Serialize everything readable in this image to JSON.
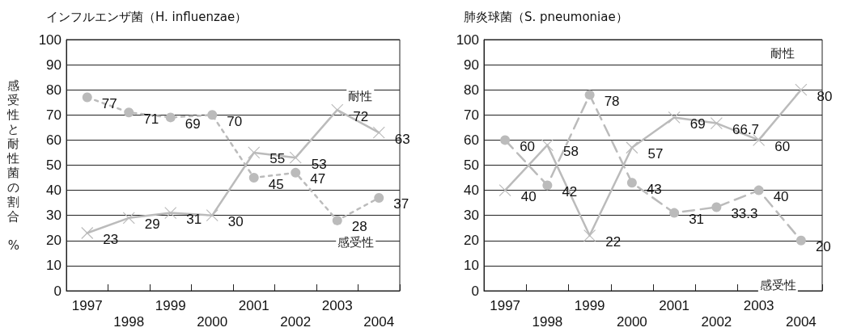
{
  "chart_data": [
    {
      "type": "line",
      "title": "インフルエンザ菌（H. influenzae）",
      "ylabel": "感受性と耐性菌の割合　%",
      "categories": [
        "1997",
        "1998",
        "1999",
        "2000",
        "2001",
        "2002",
        "2003",
        "2004"
      ],
      "series": [
        {
          "name": "耐性",
          "color": "#bbbbbb",
          "marker": "cross",
          "line_style": "solid",
          "values": [
            23,
            29,
            31,
            30,
            55,
            53,
            72,
            63
          ]
        },
        {
          "name": "感受性",
          "color": "#bbbbbb",
          "marker": "circle",
          "line_style": "dotted",
          "values": [
            77,
            71,
            69,
            70,
            45,
            47,
            28,
            37
          ]
        }
      ],
      "ylim": [
        0,
        100
      ],
      "yticks": [
        0,
        10,
        20,
        30,
        40,
        50,
        60,
        70,
        80,
        90,
        100
      ],
      "grid": "y",
      "legend": false,
      "data_labels": true
    },
    {
      "type": "line",
      "title": "肺炎球菌（S. pneumoniae）",
      "categories": [
        "1997",
        "1998",
        "1999",
        "2000",
        "2001",
        "2002",
        "2003",
        "2004"
      ],
      "series": [
        {
          "name": "耐性",
          "color": "#bbbbbb",
          "marker": "cross",
          "line_style": "solid",
          "values": [
            40,
            58,
            22,
            57,
            69,
            66.7,
            60,
            80
          ]
        },
        {
          "name": "感受性",
          "color": "#bbbbbb",
          "marker": "circle",
          "line_style": "dashed",
          "values": [
            60,
            42,
            78,
            43,
            31,
            33.3,
            40,
            20
          ]
        }
      ],
      "ylim": [
        0,
        100
      ],
      "yticks": [
        0,
        10,
        20,
        30,
        40,
        50,
        60,
        70,
        80,
        90,
        100
      ],
      "grid": "y",
      "legend": false,
      "data_labels": true
    }
  ]
}
